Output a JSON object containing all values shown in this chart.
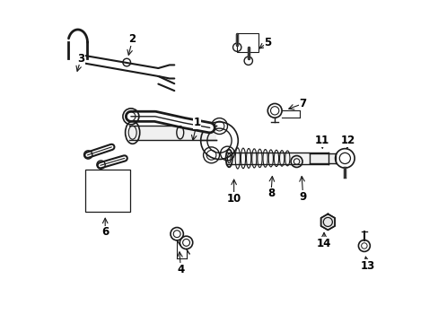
{
  "background_color": "#ffffff",
  "line_color": "#1a1a1a",
  "figsize": [
    4.89,
    3.6
  ],
  "dpi": 100,
  "callouts": {
    "1": [
      0.43,
      0.62,
      0.415,
      0.555
    ],
    "2": [
      0.23,
      0.88,
      0.215,
      0.82
    ],
    "3": [
      0.07,
      0.82,
      0.055,
      0.77
    ],
    "4": [
      0.38,
      0.165,
      0.375,
      0.23
    ],
    "5": [
      0.65,
      0.87,
      0.615,
      0.845
    ],
    "6": [
      0.145,
      0.28,
      0.145,
      0.335
    ],
    "7": [
      0.76,
      0.68,
      0.705,
      0.66
    ],
    "8": [
      0.66,
      0.4,
      0.665,
      0.465
    ],
    "9": [
      0.76,
      0.39,
      0.755,
      0.465
    ],
    "10": [
      0.545,
      0.385,
      0.545,
      0.455
    ],
    "11": [
      0.82,
      0.565,
      0.82,
      0.53
    ],
    "12": [
      0.9,
      0.565,
      0.895,
      0.53
    ],
    "13": [
      0.96,
      0.175,
      0.952,
      0.215
    ],
    "14": [
      0.825,
      0.245,
      0.825,
      0.29
    ]
  }
}
